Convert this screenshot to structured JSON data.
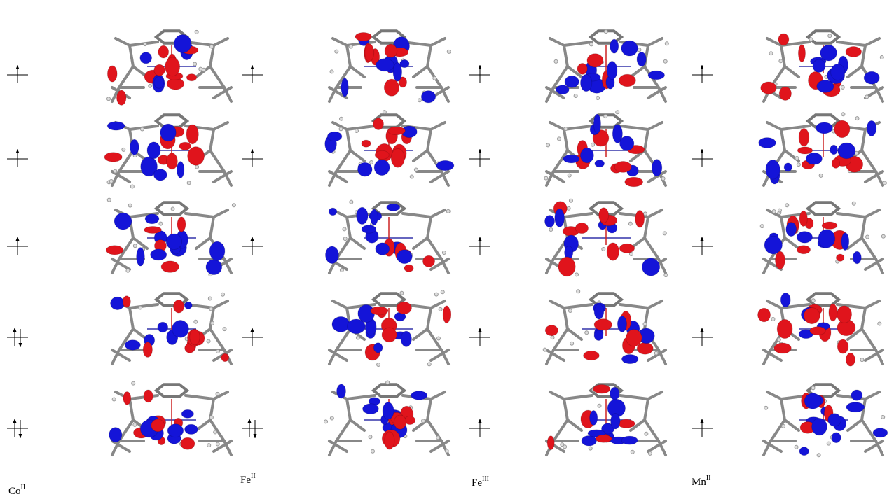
{
  "columns": [
    {
      "element": "Co",
      "oxidation": "II",
      "occupations": [
        1,
        1,
        1,
        2,
        2
      ]
    },
    {
      "element": "Fe",
      "oxidation": "II",
      "occupations": [
        1,
        1,
        1,
        1,
        2
      ]
    },
    {
      "element": "Fe",
      "oxidation": "III",
      "occupations": [
        1,
        1,
        1,
        1,
        1
      ]
    },
    {
      "element": "Mn",
      "oxidation": "II",
      "occupations": [
        1,
        1,
        1,
        1,
        1
      ]
    }
  ]
}
